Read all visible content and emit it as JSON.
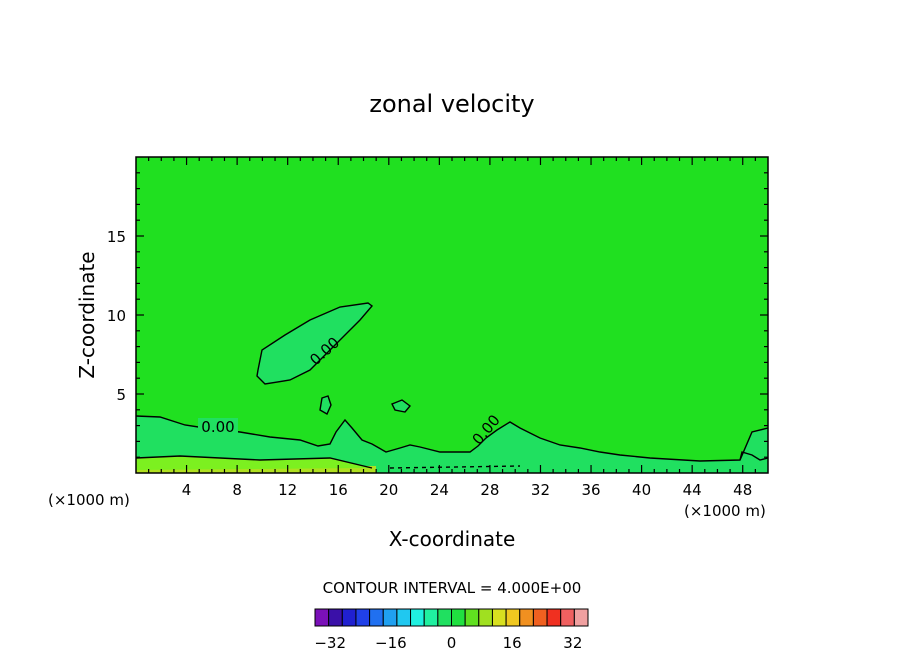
{
  "chart_data": {
    "type": "contour",
    "title": "zonal velocity",
    "xlabel": "X-coordinate",
    "ylabel": "Z-coordinate",
    "x_unit": "(×1000 m)",
    "z_unit": "(×1000 m)",
    "xlim": [
      0,
      50
    ],
    "ylim": [
      0,
      20
    ],
    "x_ticks": [
      4,
      8,
      12,
      16,
      20,
      24,
      28,
      32,
      36,
      40,
      44,
      48
    ],
    "y_ticks": [
      5,
      10,
      15
    ],
    "contour_labels": [
      "0.00",
      "0.00",
      "0.00"
    ],
    "contour_interval_text": "CONTOUR INTERVAL = 4.000E+00",
    "colorbar": {
      "min": -36,
      "max": 36,
      "step": 4,
      "ticks": [
        -32,
        -16,
        0,
        16,
        32
      ],
      "colors": [
        "#7a10b8",
        "#3a10a8",
        "#2020d0",
        "#2040e8",
        "#2070f0",
        "#20a0f0",
        "#20c8f0",
        "#20f0e0",
        "#20f0a0",
        "#20e060",
        "#20e040",
        "#60e020",
        "#a0e020",
        "#d8e020",
        "#f0c820",
        "#f09020",
        "#f06020",
        "#f03020",
        "#f06060",
        "#f0a0a0"
      ]
    },
    "field_colors": {
      "background": "#20e020",
      "band_0_to_4": "#20e060",
      "band_minus_4_to_0": "#7cf020",
      "near_surface": "#b0e020"
    }
  }
}
